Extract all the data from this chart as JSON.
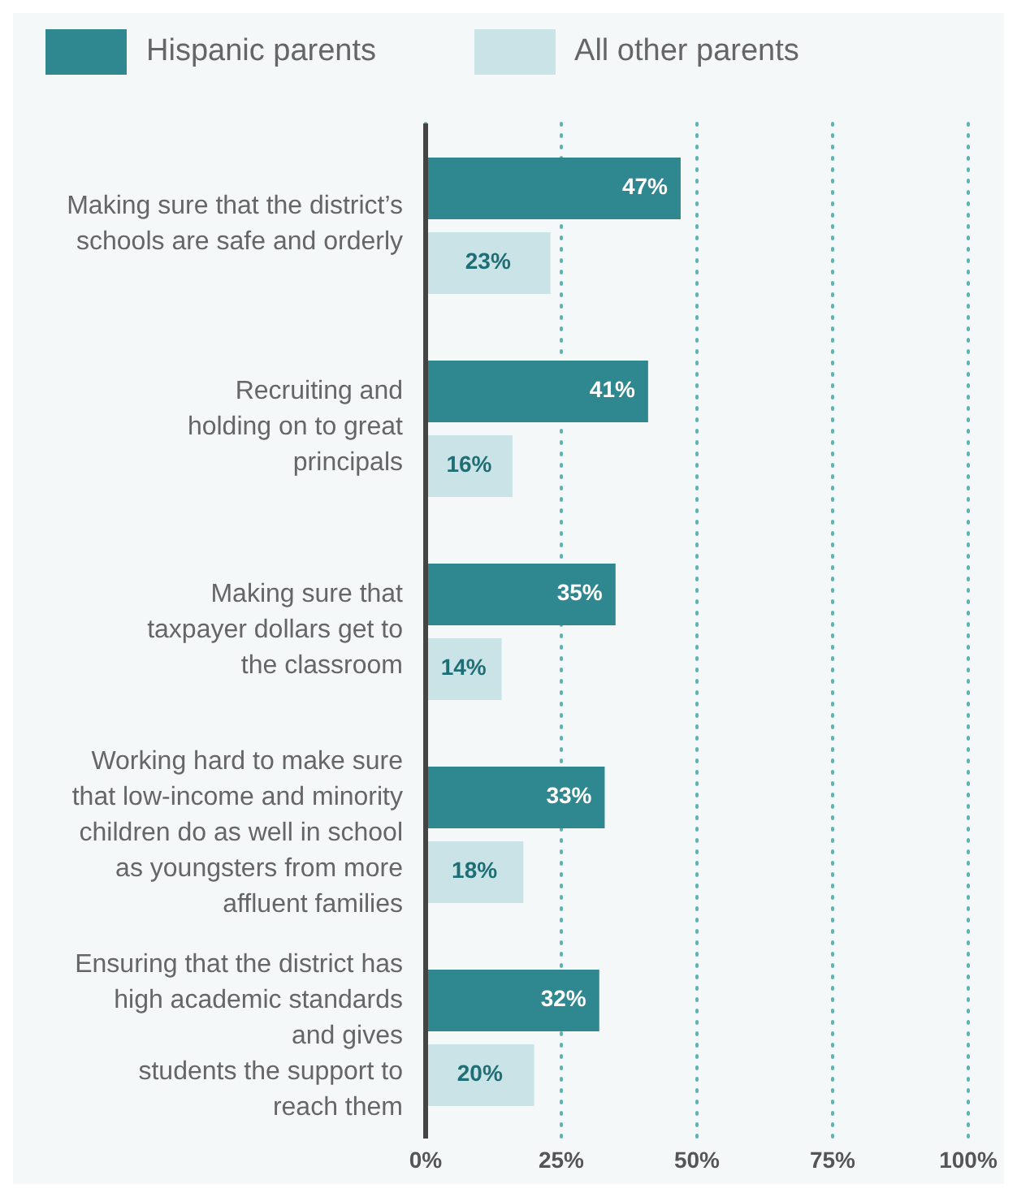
{
  "chart_data": {
    "type": "bar",
    "orientation": "horizontal",
    "categories": [
      "Making sure that the district’s\nschools are safe and orderly",
      "Recruiting and\nholding on to great\nprincipals",
      "Making sure that\ntaxpayer dollars get to\nthe classroom",
      "Working hard to make sure\nthat low-income and minority\nchildren do as well in school\nas youngsters from more\naffluent families",
      "Ensuring that the district has\nhigh academic standards\nand gives\nstudents the support to\nreach them"
    ],
    "series": [
      {
        "name": "Hispanic parents",
        "color": "#2f8890",
        "values": [
          47,
          41,
          35,
          33,
          32
        ],
        "value_labels": [
          "47%",
          "41%",
          "35%",
          "33%",
          "32%"
        ]
      },
      {
        "name": "All other parents",
        "color": "#c9e3e6",
        "values": [
          23,
          16,
          14,
          18,
          20
        ],
        "value_labels": [
          "23%",
          "16%",
          "14%",
          "18%",
          "20%"
        ]
      }
    ],
    "xlim": [
      0,
      100
    ],
    "xticks": [
      {
        "value": 0,
        "label": "0%"
      },
      {
        "value": 25,
        "label": "25%"
      },
      {
        "value": 50,
        "label": "50%"
      },
      {
        "value": 75,
        "label": "75%"
      },
      {
        "value": 100,
        "label": "100%"
      }
    ],
    "grid": "x",
    "legend": "top left"
  }
}
